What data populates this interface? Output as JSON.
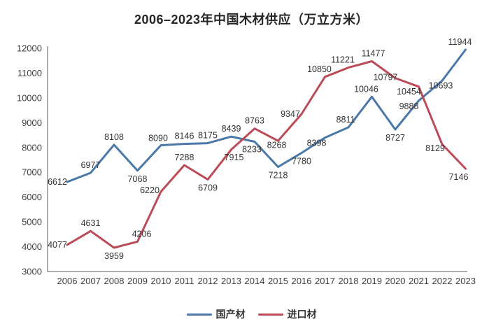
{
  "chart": {
    "title": "2006–2023年中国木材供应（万立方米）"
  },
  "chart_data": {
    "type": "line",
    "title": "2006–2023年中国木材供应（万立方米）",
    "categories": [
      "2006",
      "2007",
      "2008",
      "2009",
      "2010",
      "2011",
      "2012",
      "2013",
      "2014",
      "2015",
      "2016",
      "2017",
      "2018",
      "2019",
      "2020",
      "2021",
      "2022",
      "2023"
    ],
    "series": [
      {
        "name": "国产材",
        "color": "#4a78a8",
        "values": [
          6612,
          6977,
          8108,
          7068,
          8090,
          8146,
          8175,
          8439,
          8233,
          7218,
          7780,
          8398,
          8811,
          10046,
          8727,
          9888,
          10693,
          11944
        ]
      },
      {
        "name": "进口材",
        "color": "#bb4b57",
        "values": [
          4077,
          4631,
          3959,
          4206,
          6220,
          7288,
          6709,
          7915,
          8763,
          8268,
          9347,
          10850,
          11221,
          11477,
          10797,
          10454,
          8129,
          7146
        ]
      }
    ],
    "ylim": [
      3000,
      12000
    ],
    "ytick_step": 1000,
    "grid": false,
    "show_data_labels": true,
    "legend_position": "bottom",
    "axis_color": "#5a5a5a",
    "tick_label_color": "#404040",
    "data_label_color": "#333333"
  }
}
